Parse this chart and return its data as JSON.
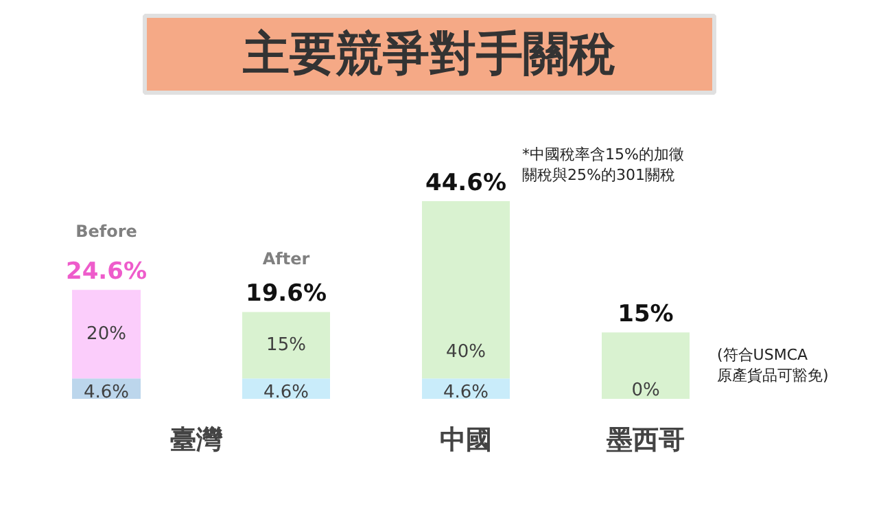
{
  "chart_data": {
    "type": "bar",
    "title": "主要競爭對手關稅",
    "categories": [
      null,
      null,
      "中國",
      "墨西哥"
    ],
    "stacked": true,
    "series": [
      {
        "colors": [
          "#bcd6ec",
          "#c9ecfa",
          "#c9ecfa",
          "#c9ecfa"
        ],
        "values": [
          4.6,
          4.6,
          4.6,
          0
        ],
        "value_labels": [
          "4.6%",
          "4.6%",
          "4.6%",
          "0%"
        ]
      },
      {
        "colors": [
          "#fbcdfb",
          "#d9f2d0",
          "#d9f2d0",
          "#d9f2d0"
        ],
        "values": [
          20,
          15,
          40,
          15
        ],
        "value_labels": [
          "20%",
          "15%",
          "40%",
          null
        ]
      }
    ],
    "totals": [
      "24.6%",
      "19.6%",
      "44.6%",
      "15%"
    ],
    "annotations": [
      "Before",
      "After",
      "臺灣",
      "*中國稅率含15%的加徵關稅與25%的301關稅",
      "(符合USMCA原產貨品可豁免)"
    ],
    "grid": false
  }
}
